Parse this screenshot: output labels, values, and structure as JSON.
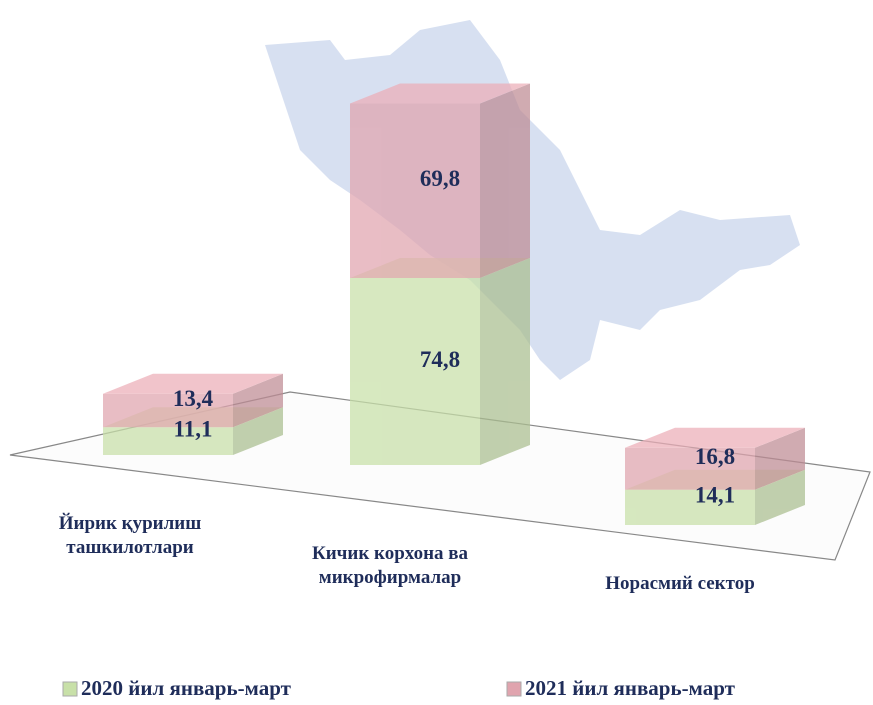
{
  "chart_data": {
    "type": "bar3d_stacked",
    "categories": [
      [
        "Йирик қурилиш",
        "ташкилотлари"
      ],
      [
        "Кичик корхона ва",
        "микрофирмалар"
      ],
      [
        "Норасмий сектор"
      ]
    ],
    "series": [
      {
        "name": "2020 йил январь-март",
        "color": "#c8e0a8",
        "values": [
          11.1,
          74.8,
          14.1
        ],
        "value_labels": [
          "11,1",
          "74,8",
          "14,1"
        ]
      },
      {
        "name": "2021 йил январь-март",
        "color": "#e0a4ae",
        "values": [
          13.4,
          69.8,
          16.8
        ],
        "value_labels": [
          "13,4",
          "69,8",
          "16,8"
        ]
      }
    ]
  }
}
